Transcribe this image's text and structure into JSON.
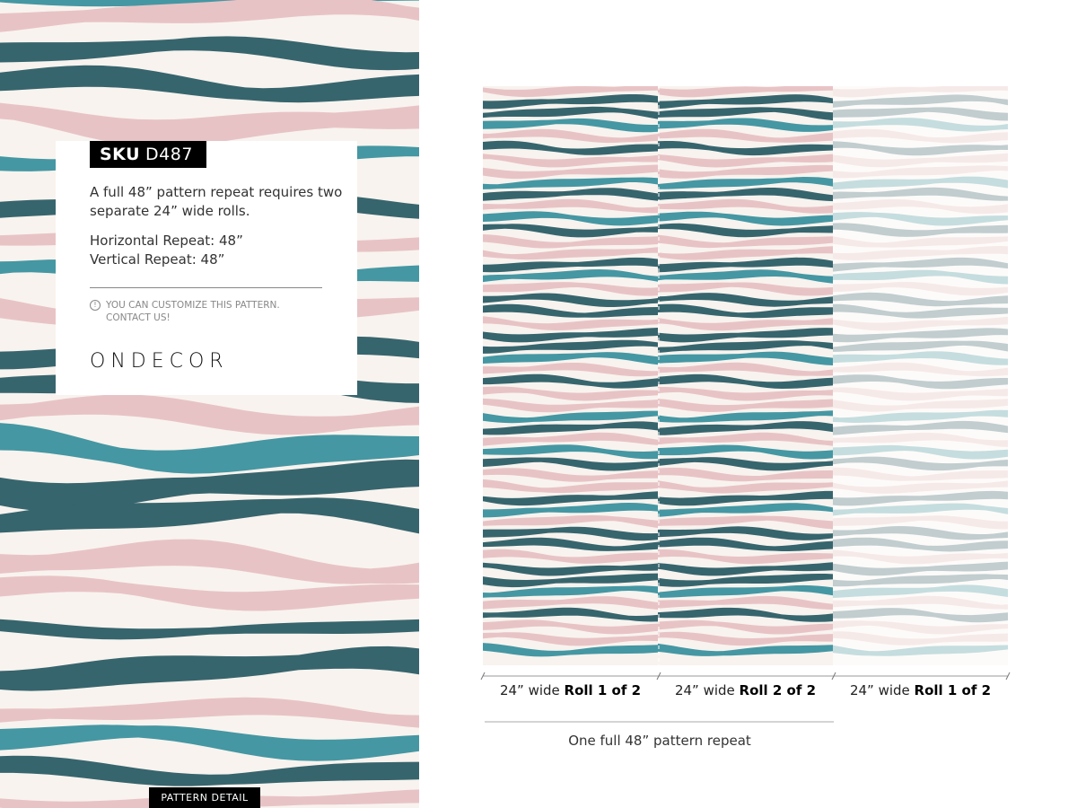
{
  "colors": {
    "cream": "#f8f3ee",
    "dark_teal": "#37656e",
    "teal": "#4597a3",
    "pink": "#e8c3c5",
    "text": "#333333"
  },
  "card": {
    "sku_prefix": "SKU",
    "sku_code": "D487",
    "description": "A full 48” pattern repeat requires two separate 24” wide rolls.",
    "horizontal_repeat": "Horizontal Repeat: 48”",
    "vertical_repeat": "Vertical Repeat: 48”",
    "note_icon": "info-icon",
    "note": "YOU CAN CUSTOMIZE THIS PATTERN. CONTACT US!",
    "logo": "ONDECOR"
  },
  "pattern_detail_label": "PATTERN DETAIL",
  "rolls": [
    {
      "prefix": "24” wide ",
      "name": "Roll 1 of 2"
    },
    {
      "prefix": "24” wide ",
      "name": "Roll 2 of 2"
    },
    {
      "prefix": "24” wide ",
      "name": "Roll 1 of 2"
    }
  ],
  "repeat_label": "One full 48” pattern repeat"
}
